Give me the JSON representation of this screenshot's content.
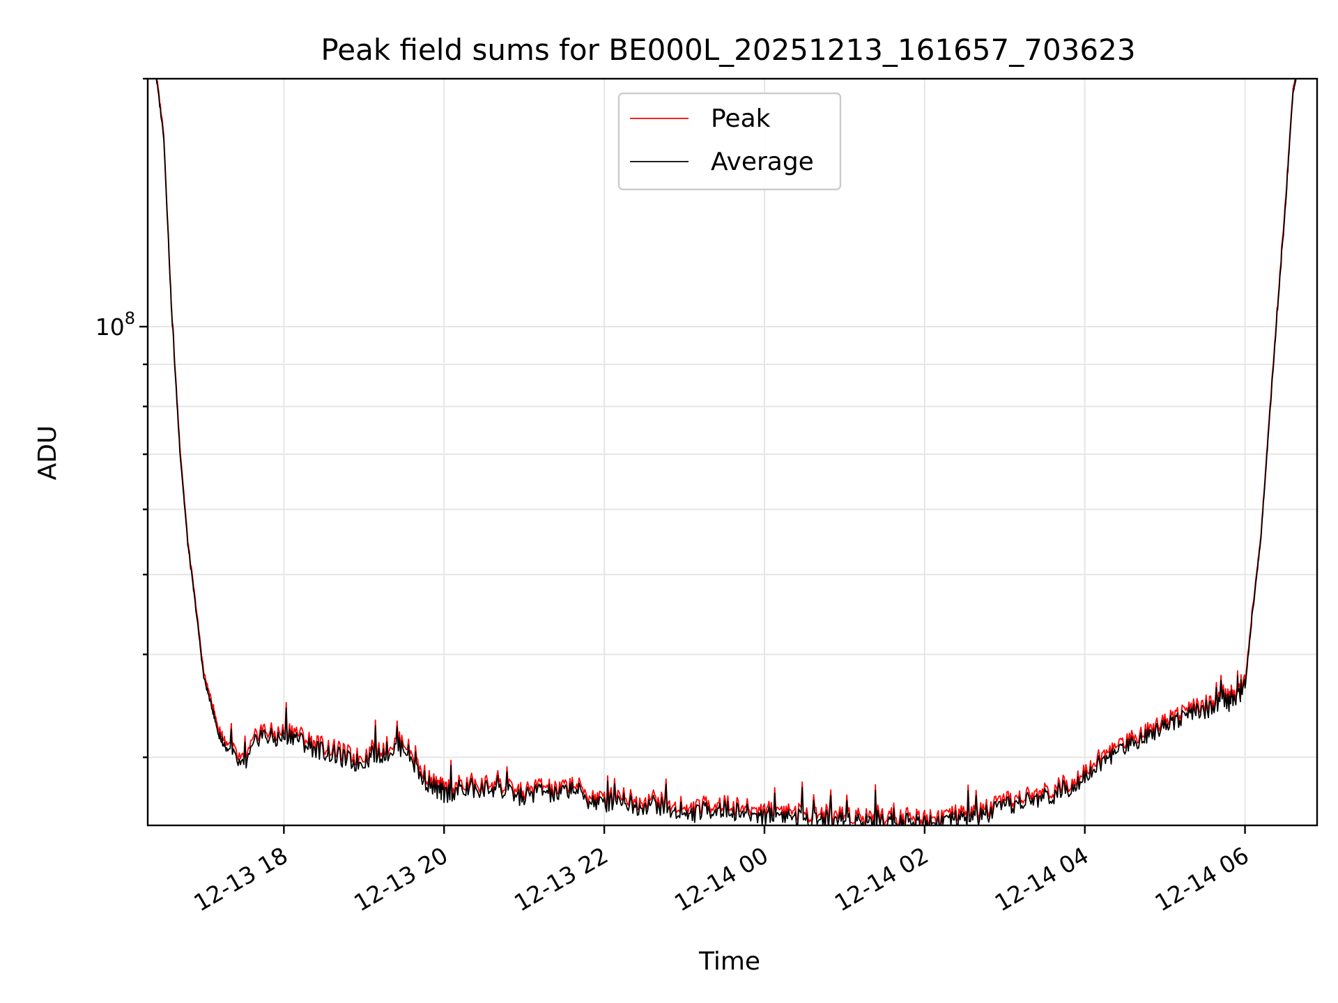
{
  "chart_data": {
    "type": "line",
    "title": "Peak field sums for BE000L_20251213_161657_703623",
    "xlabel": "Time",
    "ylabel": "ADU",
    "yscale": "log",
    "ylim": [
      24800000,
      200000000
    ],
    "xlim_hours": [
      16.3,
      30.9
    ],
    "x_tick_hours": [
      18,
      20,
      22,
      24,
      26,
      28,
      30
    ],
    "x_tick_labels": [
      "12-13 18",
      "12-13 20",
      "12-13 22",
      "12-14 00",
      "12-14 02",
      "12-14 04",
      "12-14 06"
    ],
    "y_major_ticks": [
      100000000
    ],
    "y_major_tick_labels": [
      "10"
    ],
    "y_major_tick_exponents": [
      "8"
    ],
    "y_minor_ticks": [
      30000000,
      40000000,
      50000000,
      60000000,
      70000000,
      80000000,
      90000000,
      200000000
    ],
    "grid": true,
    "legend": {
      "position": "top-center",
      "entries": [
        "Peak",
        "Average"
      ]
    },
    "series": [
      {
        "name": "Peak",
        "color": "#ff0000",
        "x_hours": [
          16.4,
          16.5,
          16.6,
          16.7,
          16.8,
          16.9,
          17.0,
          17.1,
          17.2,
          17.3,
          17.5,
          17.7,
          17.9,
          18.1,
          18.3,
          18.5,
          18.7,
          18.9,
          19.1,
          19.3,
          19.5,
          19.7,
          19.9,
          20.0,
          20.2,
          20.4,
          20.6,
          20.8,
          21.0,
          21.2,
          21.4,
          21.6,
          21.8,
          22.0,
          22.2,
          22.4,
          22.6,
          22.8,
          23.0,
          23.2,
          23.4,
          23.6,
          23.8,
          24.0,
          24.2,
          24.4,
          24.6,
          24.8,
          25.0,
          25.2,
          25.4,
          25.6,
          25.8,
          26.0,
          26.2,
          26.4,
          26.6,
          26.8,
          27.0,
          27.2,
          27.4,
          27.6,
          27.8,
          28.0,
          28.2,
          28.4,
          28.6,
          28.8,
          29.0,
          29.2,
          29.4,
          29.6,
          29.8,
          29.9,
          30.0,
          30.1,
          30.2,
          30.3,
          30.4,
          30.5,
          30.6,
          30.65
        ],
        "values": [
          205000000,
          172000000,
          104000000,
          72000000,
          55000000,
          46000000,
          38000000,
          35000000,
          32000000,
          31000000,
          29500000,
          32500000,
          32000000,
          32500000,
          31500000,
          31000000,
          30500000,
          30000000,
          30500000,
          31000000,
          31500000,
          29000000,
          27800000,
          27500000,
          27800000,
          27600000,
          28000000,
          27500000,
          27200000,
          27800000,
          27300000,
          28000000,
          27000000,
          26700000,
          27200000,
          26500000,
          26800000,
          26300000,
          25800000,
          26200000,
          26400000,
          26200000,
          26000000,
          25900000,
          26000000,
          25800000,
          25700000,
          25600000,
          25600000,
          25500000,
          25600000,
          25400000,
          25500000,
          25400000,
          25500000,
          25600000,
          25700000,
          26000000,
          26500000,
          26800000,
          27100000,
          27400000,
          28000000,
          29000000,
          30000000,
          31000000,
          31800000,
          32500000,
          33500000,
          34000000,
          34500000,
          35000000,
          35500000,
          35800000,
          37000000,
          46000000,
          56000000,
          77000000,
          104000000,
          140000000,
          195000000,
          205000000
        ]
      },
      {
        "name": "Average",
        "color": "#000000",
        "x_hours": [
          16.4,
          16.5,
          16.6,
          16.7,
          16.8,
          16.9,
          17.0,
          17.1,
          17.2,
          17.3,
          17.5,
          17.7,
          17.9,
          18.1,
          18.3,
          18.5,
          18.7,
          18.9,
          19.1,
          19.3,
          19.5,
          19.7,
          19.9,
          20.0,
          20.2,
          20.4,
          20.6,
          20.8,
          21.0,
          21.2,
          21.4,
          21.6,
          21.8,
          22.0,
          22.2,
          22.4,
          22.6,
          22.8,
          23.0,
          23.2,
          23.4,
          23.6,
          23.8,
          24.0,
          24.2,
          24.4,
          24.6,
          24.8,
          25.0,
          25.2,
          25.4,
          25.6,
          25.8,
          26.0,
          26.2,
          26.4,
          26.6,
          26.8,
          27.0,
          27.2,
          27.4,
          27.6,
          27.8,
          28.0,
          28.2,
          28.4,
          28.6,
          28.8,
          29.0,
          29.2,
          29.4,
          29.6,
          29.8,
          29.9,
          30.0,
          30.1,
          30.2,
          30.3,
          30.4,
          30.5,
          30.6,
          30.65
        ],
        "values": [
          203000000,
          170000000,
          103000000,
          71000000,
          54500000,
          45500000,
          37500000,
          34500000,
          31500000,
          30500000,
          29000000,
          32000000,
          31500000,
          32000000,
          31000000,
          30500000,
          30000000,
          29500000,
          30000000,
          30500000,
          31000000,
          28500000,
          27400000,
          27100000,
          27400000,
          27200000,
          27600000,
          27100000,
          26800000,
          27400000,
          26900000,
          27600000,
          26600000,
          26300000,
          26800000,
          26100000,
          26400000,
          25900000,
          25400000,
          25800000,
          26000000,
          25800000,
          25600000,
          25500000,
          25600000,
          25400000,
          25300000,
          25200000,
          25200000,
          25100000,
          25200000,
          25000000,
          25100000,
          25000000,
          25100000,
          25200000,
          25300000,
          25600000,
          26100000,
          26400000,
          26700000,
          27000000,
          27600000,
          28500000,
          29500000,
          30500000,
          31300000,
          32000000,
          33000000,
          33500000,
          34000000,
          34500000,
          35000000,
          35300000,
          36500000,
          45500000,
          55500000,
          76000000,
          103000000,
          138000000,
          193000000,
          203000000
        ]
      }
    ]
  }
}
